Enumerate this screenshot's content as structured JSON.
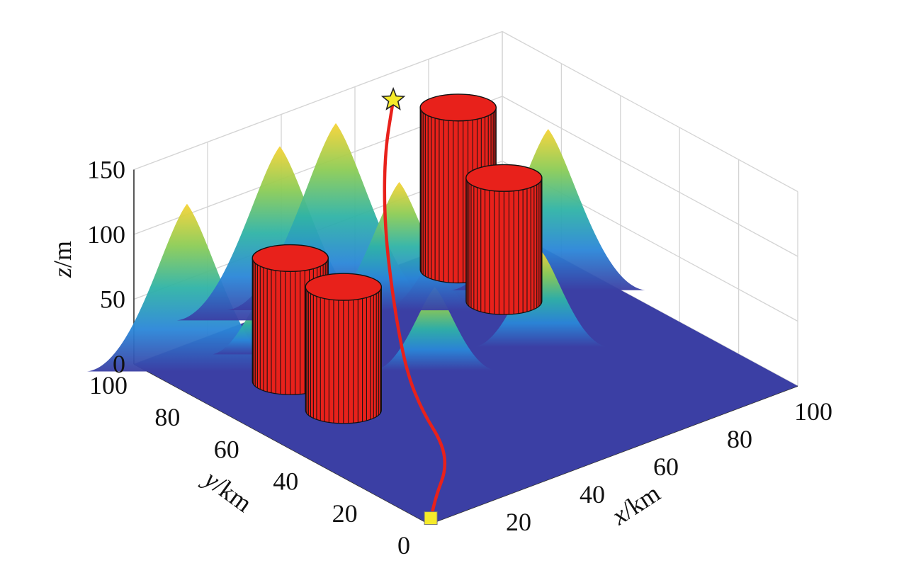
{
  "chart_data": {
    "type": "surface3d",
    "title": "",
    "xlabel": {
      "var": "x",
      "unit": "/km"
    },
    "ylabel": {
      "var": "y",
      "unit": "/km"
    },
    "zlabel": {
      "var": "z",
      "unit": "/m"
    },
    "xlim": [
      0,
      100
    ],
    "ylim": [
      0,
      100
    ],
    "zlim": [
      0,
      150
    ],
    "x_ticks": [
      "20",
      "40",
      "60",
      "80",
      "100"
    ],
    "y_ticks": [
      "0",
      "20",
      "40",
      "60",
      "80",
      "100"
    ],
    "z_ticks": [
      "0",
      "50",
      "100",
      "150"
    ],
    "grid": true,
    "colormap": "parula",
    "terrain_peaks": [
      {
        "x": 8,
        "y": 92,
        "height": 125
      },
      {
        "x": 50,
        "y": 94,
        "height": 140
      },
      {
        "x": 38,
        "y": 98,
        "height": 130
      },
      {
        "x": 90,
        "y": 72,
        "height": 120
      },
      {
        "x": 72,
        "y": 75,
        "height": 110
      },
      {
        "x": 60,
        "y": 85,
        "height": 95
      },
      {
        "x": 72,
        "y": 52,
        "height": 70
      },
      {
        "x": 48,
        "y": 58,
        "height": 60
      },
      {
        "x": 25,
        "y": 88,
        "height": 40
      }
    ],
    "obstacles": [
      {
        "type": "cylinder",
        "x": 20,
        "y": 72,
        "radius": 9,
        "height": 95,
        "color": "#e8211b"
      },
      {
        "type": "cylinder",
        "x": 20,
        "y": 54,
        "radius": 9,
        "height": 95,
        "color": "#e8211b"
      },
      {
        "type": "cylinder",
        "x": 80,
        "y": 90,
        "radius": 9,
        "height": 125,
        "color": "#e8211b"
      },
      {
        "type": "cylinder",
        "x": 78,
        "y": 72,
        "radius": 9,
        "height": 95,
        "color": "#e8211b"
      }
    ],
    "path": {
      "color": "#e8211b",
      "points": [
        [
          2,
          2,
          0
        ],
        [
          10,
          10,
          0
        ],
        [
          19,
          18,
          0
        ],
        [
          26,
          28,
          0
        ],
        [
          32,
          42,
          0
        ],
        [
          38,
          55,
          8
        ],
        [
          45,
          68,
          35
        ],
        [
          52,
          80,
          75
        ],
        [
          60,
          90,
          110
        ],
        [
          68,
          97,
          135
        ]
      ],
      "start": {
        "x": 2,
        "y": 2,
        "z": 0,
        "marker": "square",
        "color": "#f5ea2a"
      },
      "end": {
        "x": 68,
        "y": 97,
        "z": 135,
        "marker": "star",
        "color": "#f5ea2a"
      }
    }
  }
}
